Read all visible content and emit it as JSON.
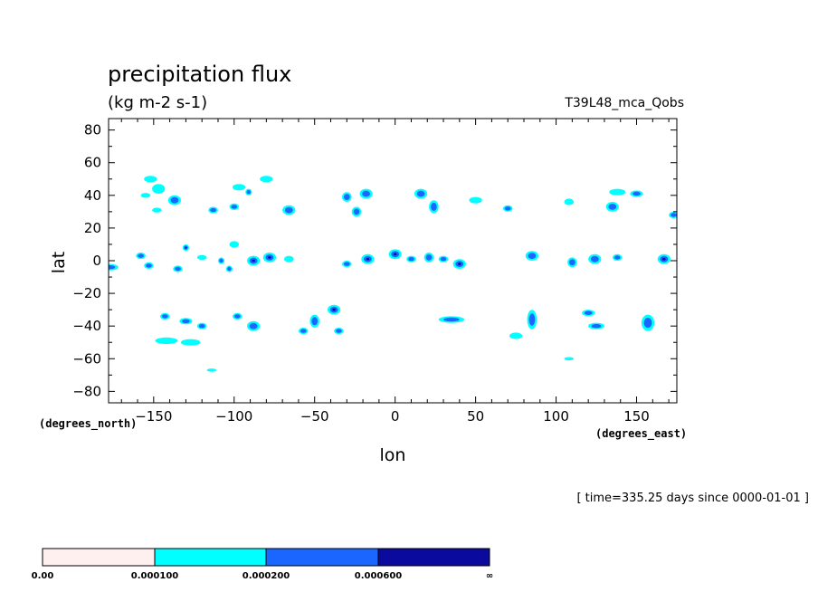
{
  "title": "precipitation flux",
  "units": "(kg m-2 s-1)",
  "run_label": "T39L48_mca_Qobs",
  "time_label": "[ time=335.25 days since 0000-01-01 ]",
  "colors": {
    "level0": "#fff0f0",
    "level1": "#00ffff",
    "level2": "#1a66ff",
    "level3": "#0a0a9e"
  },
  "colorbar": {
    "labels": [
      "0.00",
      "0.000100",
      "0.000200",
      "0.000600",
      "∞"
    ]
  },
  "chart_data": {
    "type": "heatmap",
    "title": "precipitation flux",
    "subtitle": "(kg m-2 s-1)",
    "xlabel": "lon",
    "ylabel": "lat",
    "x_units": "(degrees_east)",
    "y_units": "(degrees_north)",
    "xlim": [
      -178,
      175
    ],
    "ylim": [
      -87,
      87
    ],
    "xticks": [
      -150,
      -100,
      -50,
      0,
      50,
      100,
      150
    ],
    "yticks": [
      80,
      60,
      40,
      20,
      0,
      -20,
      -40,
      -60,
      -80
    ],
    "xtick_labels": [
      "−150",
      "−100",
      "−50",
      "0",
      "50",
      "100",
      "150"
    ],
    "ytick_labels": [
      "80",
      "60",
      "40",
      "20",
      "0",
      "−20",
      "−40",
      "−60",
      "−80"
    ],
    "levels": [
      0.0,
      0.0001,
      0.0002,
      0.0006
    ],
    "cells": [
      {
        "lon": -177,
        "lat": -4,
        "rlon": 5,
        "rlat": 2,
        "level": 2
      },
      {
        "lon": -152,
        "lat": 50,
        "rlon": 4,
        "rlat": 2,
        "level": 1
      },
      {
        "lon": -147,
        "lat": 44,
        "rlon": 4,
        "rlat": 3,
        "level": 1
      },
      {
        "lon": -137,
        "lat": 37,
        "rlon": 4,
        "rlat": 3,
        "level": 2
      },
      {
        "lon": -155,
        "lat": 40,
        "rlon": 3,
        "rlat": 1.5,
        "level": 1
      },
      {
        "lon": -148,
        "lat": 31,
        "rlon": 3,
        "rlat": 1.5,
        "level": 1
      },
      {
        "lon": -158,
        "lat": 3,
        "rlon": 3,
        "rlat": 2,
        "level": 2
      },
      {
        "lon": -153,
        "lat": -3,
        "rlon": 3,
        "rlat": 2,
        "level": 2
      },
      {
        "lon": -135,
        "lat": -5,
        "rlon": 3,
        "rlat": 2,
        "level": 2
      },
      {
        "lon": -130,
        "lat": 8,
        "rlon": 2,
        "rlat": 2,
        "level": 3
      },
      {
        "lon": -120,
        "lat": 2,
        "rlon": 3,
        "rlat": 1.5,
        "level": 1
      },
      {
        "lon": -108,
        "lat": 0,
        "rlon": 2,
        "rlat": 2,
        "level": 2
      },
      {
        "lon": -103,
        "lat": -5,
        "rlon": 2,
        "rlat": 2,
        "level": 2
      },
      {
        "lon": -113,
        "lat": 31,
        "rlon": 3,
        "rlat": 2,
        "level": 2
      },
      {
        "lon": -97,
        "lat": 45,
        "rlon": 4,
        "rlat": 2,
        "level": 1
      },
      {
        "lon": -91,
        "lat": 42,
        "rlon": 2,
        "rlat": 2,
        "level": 2
      },
      {
        "lon": -100,
        "lat": 33,
        "rlon": 3,
        "rlat": 2,
        "level": 2
      },
      {
        "lon": -80,
        "lat": 50,
        "rlon": 4,
        "rlat": 2,
        "level": 1
      },
      {
        "lon": -66,
        "lat": 31,
        "rlon": 4,
        "rlat": 3,
        "level": 2
      },
      {
        "lon": -100,
        "lat": 10,
        "rlon": 3,
        "rlat": 2,
        "level": 1
      },
      {
        "lon": -88,
        "lat": 0,
        "rlon": 4,
        "rlat": 3,
        "level": 3
      },
      {
        "lon": -78,
        "lat": 2,
        "rlon": 4,
        "rlat": 3,
        "level": 3
      },
      {
        "lon": -66,
        "lat": 1,
        "rlon": 3,
        "rlat": 2,
        "level": 1
      },
      {
        "lon": -143,
        "lat": -34,
        "rlon": 3,
        "rlat": 2,
        "level": 2
      },
      {
        "lon": -130,
        "lat": -37,
        "rlon": 4,
        "rlat": 2,
        "level": 2
      },
      {
        "lon": -120,
        "lat": -40,
        "rlon": 3,
        "rlat": 2,
        "level": 2
      },
      {
        "lon": -98,
        "lat": -34,
        "rlon": 3,
        "rlat": 2,
        "level": 2
      },
      {
        "lon": -88,
        "lat": -40,
        "rlon": 4,
        "rlat": 3,
        "level": 2
      },
      {
        "lon": -142,
        "lat": -49,
        "rlon": 7,
        "rlat": 2,
        "level": 1
      },
      {
        "lon": -127,
        "lat": -50,
        "rlon": 6,
        "rlat": 2,
        "level": 1
      },
      {
        "lon": -114,
        "lat": -67,
        "rlon": 3,
        "rlat": 1,
        "level": 1
      },
      {
        "lon": -50,
        "lat": -37,
        "rlon": 3,
        "rlat": 4,
        "level": 2
      },
      {
        "lon": -38,
        "lat": -30,
        "rlon": 4,
        "rlat": 3,
        "level": 3
      },
      {
        "lon": -35,
        "lat": -43,
        "rlon": 3,
        "rlat": 2,
        "level": 2
      },
      {
        "lon": -57,
        "lat": -43,
        "rlon": 3,
        "rlat": 2,
        "level": 2
      },
      {
        "lon": -30,
        "lat": 39,
        "rlon": 3,
        "rlat": 3,
        "level": 2
      },
      {
        "lon": -18,
        "lat": 41,
        "rlon": 4,
        "rlat": 3,
        "level": 2
      },
      {
        "lon": -24,
        "lat": 30,
        "rlon": 3,
        "rlat": 3,
        "level": 2
      },
      {
        "lon": -30,
        "lat": -2,
        "rlon": 3,
        "rlat": 2,
        "level": 2
      },
      {
        "lon": -17,
        "lat": 1,
        "rlon": 4,
        "rlat": 3,
        "level": 3
      },
      {
        "lon": 0,
        "lat": 4,
        "rlon": 4,
        "rlat": 3,
        "level": 3
      },
      {
        "lon": 10,
        "lat": 1,
        "rlon": 3,
        "rlat": 2,
        "level": 2
      },
      {
        "lon": 21,
        "lat": 2,
        "rlon": 3,
        "rlat": 3,
        "level": 2
      },
      {
        "lon": 30,
        "lat": 1,
        "rlon": 3,
        "rlat": 2,
        "level": 2
      },
      {
        "lon": 40,
        "lat": -2,
        "rlon": 4,
        "rlat": 3,
        "level": 3
      },
      {
        "lon": 16,
        "lat": 41,
        "rlon": 4,
        "rlat": 3,
        "level": 2
      },
      {
        "lon": 24,
        "lat": 33,
        "rlon": 3,
        "rlat": 4,
        "level": 2
      },
      {
        "lon": 50,
        "lat": 37,
        "rlon": 4,
        "rlat": 2,
        "level": 1
      },
      {
        "lon": 70,
        "lat": 32,
        "rlon": 3,
        "rlat": 2,
        "level": 2
      },
      {
        "lon": 35,
        "lat": -36,
        "rlon": 8,
        "rlat": 2,
        "level": 2
      },
      {
        "lon": 85,
        "lat": -36,
        "rlon": 3,
        "rlat": 6,
        "level": 2
      },
      {
        "lon": 75,
        "lat": -46,
        "rlon": 4,
        "rlat": 2,
        "level": 1
      },
      {
        "lon": 85,
        "lat": 3,
        "rlon": 4,
        "rlat": 3,
        "level": 2
      },
      {
        "lon": 110,
        "lat": -1,
        "rlon": 3,
        "rlat": 3,
        "level": 2
      },
      {
        "lon": 124,
        "lat": 1,
        "rlon": 4,
        "rlat": 3,
        "level": 2
      },
      {
        "lon": 138,
        "lat": 2,
        "rlon": 3,
        "rlat": 2,
        "level": 2
      },
      {
        "lon": 138,
        "lat": 42,
        "rlon": 5,
        "rlat": 2,
        "level": 1
      },
      {
        "lon": 150,
        "lat": 41,
        "rlon": 4,
        "rlat": 2,
        "level": 2
      },
      {
        "lon": 135,
        "lat": 33,
        "rlon": 4,
        "rlat": 3,
        "level": 2
      },
      {
        "lon": 108,
        "lat": 36,
        "rlon": 3,
        "rlat": 2,
        "level": 1
      },
      {
        "lon": 167,
        "lat": 1,
        "rlon": 4,
        "rlat": 3,
        "level": 3
      },
      {
        "lon": 173,
        "lat": 28,
        "rlon": 3,
        "rlat": 2,
        "level": 2
      },
      {
        "lon": 120,
        "lat": -32,
        "rlon": 4,
        "rlat": 2,
        "level": 2
      },
      {
        "lon": 125,
        "lat": -40,
        "rlon": 5,
        "rlat": 2,
        "level": 2
      },
      {
        "lon": 157,
        "lat": -38,
        "rlon": 4,
        "rlat": 5,
        "level": 2
      },
      {
        "lon": 108,
        "lat": -60,
        "rlon": 3,
        "rlat": 1,
        "level": 1
      }
    ]
  }
}
